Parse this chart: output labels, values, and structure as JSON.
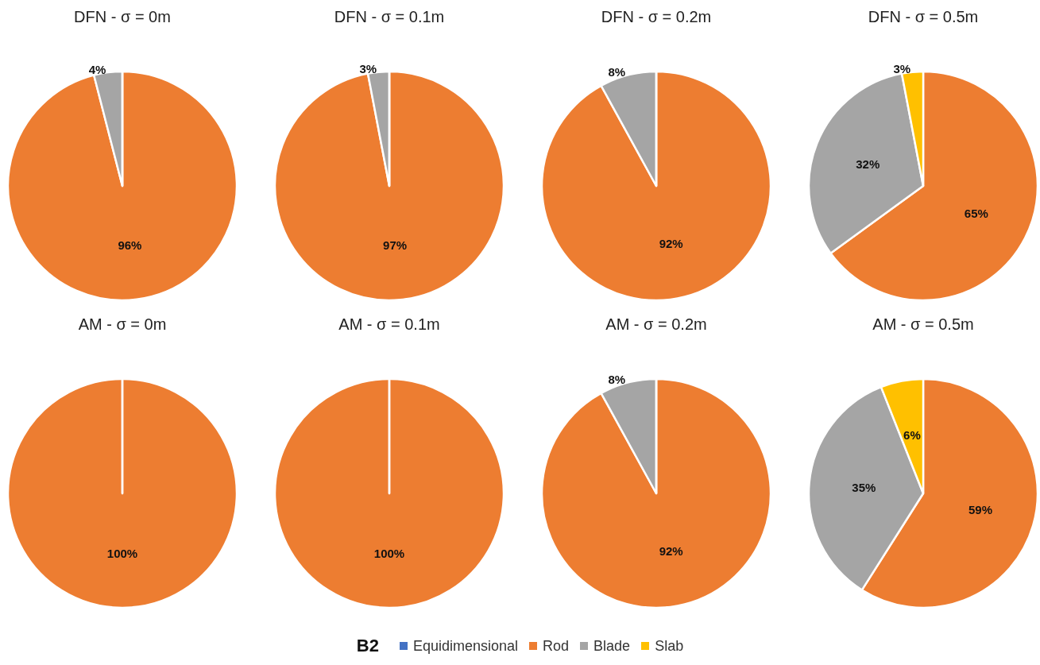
{
  "chart_data": [
    {
      "type": "pie",
      "title": "DFN - σ = 0m",
      "categories": [
        "Equidimensional",
        "Rod",
        "Blade",
        "Slab"
      ],
      "values": [
        0,
        96,
        4,
        0
      ],
      "colors": [
        "#4472c4",
        "#ed7d31",
        "#a5a5a5",
        "#ffc000"
      ],
      "value_labels": [
        null,
        "96%",
        "4%",
        null
      ],
      "legend": "bottom",
      "legend_title": "B2"
    },
    {
      "type": "pie",
      "title": "DFN - σ = 0.1m",
      "categories": [
        null,
        null,
        null,
        null
      ],
      "values": [
        0,
        97,
        3,
        0
      ],
      "colors": [
        "#4472c4",
        "#ed7d31",
        "#a5a5a5",
        "#ffc000"
      ],
      "value_labels": [
        null,
        "97%",
        "3%",
        null
      ]
    },
    {
      "type": "pie",
      "title": "DFN - σ = 0.2m",
      "categories": [
        null,
        null,
        null,
        null
      ],
      "values": [
        0,
        92,
        8,
        0
      ],
      "colors": [
        "#4472c4",
        "#ed7d31",
        "#a5a5a5",
        "#ffc000"
      ],
      "value_labels": [
        null,
        "92%",
        "8%",
        null
      ]
    },
    {
      "type": "pie",
      "title": "DFN - σ = 0.5m",
      "categories": [
        null,
        null,
        null,
        null
      ],
      "values": [
        0,
        65,
        32,
        3
      ],
      "colors": [
        "#4472c4",
        "#ed7d31",
        "#a5a5a5",
        "#ffc000"
      ],
      "value_labels": [
        null,
        "65%",
        "32%",
        "3%"
      ]
    },
    {
      "type": "pie",
      "title": "AM - σ = 0m",
      "categories": [
        null,
        null,
        null,
        null
      ],
      "values": [
        0,
        100,
        0,
        0
      ],
      "colors": [
        "#4472c4",
        "#ed7d31",
        "#a5a5a5",
        "#ffc000"
      ],
      "value_labels": [
        null,
        "100%",
        null,
        null
      ]
    },
    {
      "type": "pie",
      "title": "AM - σ = 0.1m",
      "categories": [
        null,
        null,
        null,
        null
      ],
      "values": [
        0,
        100,
        0,
        0
      ],
      "colors": [
        "#4472c4",
        "#ed7d31",
        "#a5a5a5",
        "#ffc000"
      ],
      "value_labels": [
        null,
        "100%",
        null,
        null
      ]
    },
    {
      "type": "pie",
      "title": "AM - σ = 0.2m",
      "categories": [
        null,
        null,
        null,
        null
      ],
      "values": [
        0,
        92,
        8,
        0
      ],
      "colors": [
        "#4472c4",
        "#ed7d31",
        "#a5a5a5",
        "#ffc000"
      ],
      "value_labels": [
        null,
        "92%",
        "8%",
        null
      ]
    },
    {
      "type": "pie",
      "title": "AM - σ = 0.5m",
      "categories": [
        null,
        null,
        null,
        null
      ],
      "values": [
        0,
        59,
        35,
        6
      ],
      "colors": [
        "#4472c4",
        "#ed7d31",
        "#a5a5a5",
        "#ffc000"
      ],
      "value_labels": [
        null,
        "59%",
        "35%",
        "6%"
      ]
    }
  ]
}
